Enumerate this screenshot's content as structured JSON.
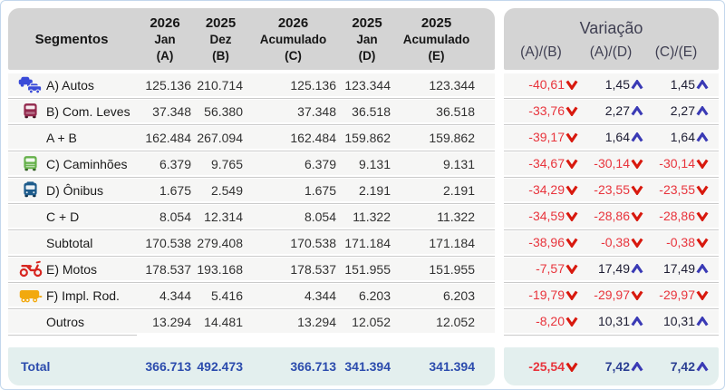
{
  "left_table": {
    "segments_header": "Segmentos",
    "columns": [
      {
        "year": "2026",
        "period": "Jan",
        "letter": "(A)"
      },
      {
        "year": "2025",
        "period": "Dez",
        "letter": "(B)"
      },
      {
        "year": "2026",
        "period": "Acumulado",
        "letter": "(C)"
      },
      {
        "year": "2025",
        "period": "Jan",
        "letter": "(D)"
      },
      {
        "year": "2025",
        "period": "Acumulado",
        "letter": "(E)"
      }
    ],
    "rows": [
      {
        "label": "A) Autos",
        "icon": "cars-icon",
        "values": [
          "125.136",
          "210.714",
          "125.136",
          "123.344",
          "123.344"
        ]
      },
      {
        "label": "B) Com. Leves",
        "icon": "light-truck-icon",
        "values": [
          "37.348",
          "56.380",
          "37.348",
          "36.518",
          "36.518"
        ]
      },
      {
        "label": "A + B",
        "icon": null,
        "values": [
          "162.484",
          "267.094",
          "162.484",
          "159.862",
          "159.862"
        ]
      },
      {
        "label": "C) Caminhões",
        "icon": "truck-icon",
        "values": [
          "6.379",
          "9.765",
          "6.379",
          "9.131",
          "9.131"
        ]
      },
      {
        "label": "D) Ônibus",
        "icon": "bus-icon",
        "values": [
          "1.675",
          "2.549",
          "1.675",
          "2.191",
          "2.191"
        ]
      },
      {
        "label": "C + D",
        "icon": null,
        "values": [
          "8.054",
          "12.314",
          "8.054",
          "11.322",
          "11.322"
        ]
      },
      {
        "label": "Subtotal",
        "icon": null,
        "values": [
          "170.538",
          "279.408",
          "170.538",
          "171.184",
          "171.184"
        ]
      },
      {
        "label": "E) Motos",
        "icon": "motorcycle-icon",
        "values": [
          "178.537",
          "193.168",
          "178.537",
          "151.955",
          "151.955"
        ]
      },
      {
        "label": "F) Impl. Rod.",
        "icon": "trailer-icon",
        "values": [
          "4.344",
          "5.416",
          "4.344",
          "6.203",
          "6.203"
        ]
      },
      {
        "label": "Outros",
        "icon": null,
        "values": [
          "13.294",
          "14.481",
          "13.294",
          "12.052",
          "12.052"
        ]
      }
    ],
    "total": {
      "label": "Total",
      "values": [
        "366.713",
        "492.473",
        "366.713",
        "341.394",
        "341.394"
      ]
    }
  },
  "variation_table": {
    "title": "Variação",
    "columns": [
      "(A)/(B)",
      "(A)/(D)",
      "(C)/(E)"
    ],
    "rows": [
      [
        {
          "text": "-40,61",
          "dir": "down"
        },
        {
          "text": "1,45",
          "dir": "up"
        },
        {
          "text": "1,45",
          "dir": "up"
        }
      ],
      [
        {
          "text": "-33,76",
          "dir": "down"
        },
        {
          "text": "2,27",
          "dir": "up"
        },
        {
          "text": "2,27",
          "dir": "up"
        }
      ],
      [
        {
          "text": "-39,17",
          "dir": "down"
        },
        {
          "text": "1,64",
          "dir": "up"
        },
        {
          "text": "1,64",
          "dir": "up"
        }
      ],
      [
        {
          "text": "-34,67",
          "dir": "down"
        },
        {
          "text": "-30,14",
          "dir": "down"
        },
        {
          "text": "-30,14",
          "dir": "down"
        }
      ],
      [
        {
          "text": "-34,29",
          "dir": "down"
        },
        {
          "text": "-23,55",
          "dir": "down"
        },
        {
          "text": "-23,55",
          "dir": "down"
        }
      ],
      [
        {
          "text": "-34,59",
          "dir": "down"
        },
        {
          "text": "-28,86",
          "dir": "down"
        },
        {
          "text": "-28,86",
          "dir": "down"
        }
      ],
      [
        {
          "text": "-38,96",
          "dir": "down"
        },
        {
          "text": "-0,38",
          "dir": "down"
        },
        {
          "text": "-0,38",
          "dir": "down"
        }
      ],
      [
        {
          "text": "-7,57",
          "dir": "down"
        },
        {
          "text": "17,49",
          "dir": "up"
        },
        {
          "text": "17,49",
          "dir": "up"
        }
      ],
      [
        {
          "text": "-19,79",
          "dir": "down"
        },
        {
          "text": "-29,97",
          "dir": "down"
        },
        {
          "text": "-29,97",
          "dir": "down"
        }
      ],
      [
        {
          "text": "-8,20",
          "dir": "down"
        },
        {
          "text": "10,31",
          "dir": "up"
        },
        {
          "text": "10,31",
          "dir": "up"
        }
      ]
    ],
    "total": [
      {
        "text": "-25,54",
        "dir": "down"
      },
      {
        "text": "7,42",
        "dir": "up"
      },
      {
        "text": "7,42",
        "dir": "up"
      }
    ]
  },
  "colors": {
    "header_bg": "#d4d4d4",
    "row_bg": "#f6f6f5",
    "total_bg": "#e3efee",
    "total_text": "#2b4bad",
    "negative_text": "#e8343c",
    "down_arrow": "#d8190e",
    "up_arrow": "#3a3ab5",
    "cars_icon": "#3a4bd8",
    "light_truck_icon": "#93294d",
    "truck_icon": "#66b14b",
    "bus_icon": "#1e5c8c",
    "motorcycle_icon": "#d7251f",
    "trailer_icon": "#f2a90e",
    "outer_border": "#c3d7ec"
  }
}
